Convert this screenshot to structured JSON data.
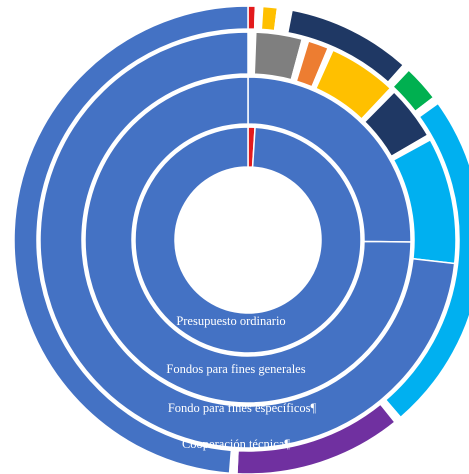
{
  "chart_data": {
    "type": "pie",
    "subtype": "multi-level doughnut",
    "title": "",
    "legend": "none",
    "rings": [
      {
        "name": "Presupuesto ordinario",
        "label": "Presupuesto ordinario",
        "slices": [
          {
            "value": 1,
            "color": "#e31a1c"
          },
          {
            "value": 99,
            "color": "#4472c4"
          }
        ]
      },
      {
        "name": "Fondos para fines generales",
        "label": "Fondos para fines generales",
        "slices": [
          {
            "value": 25.2,
            "color": "#4472c4"
          },
          {
            "value": 74.8,
            "color": "#4472c4"
          }
        ]
      },
      {
        "name": "Fondo para fines específicos",
        "label": "Fondo para fines específicos¶",
        "slices": [
          {
            "value": 0.6,
            "color": "#ffffff"
          },
          {
            "value": 3.6,
            "color": "#7f7f7f"
          },
          {
            "value": 0.5,
            "color": "#ffffff"
          },
          {
            "value": 1.6,
            "color": "#ed7d31"
          },
          {
            "value": 0.4,
            "color": "#ffffff"
          },
          {
            "value": 5.3,
            "color": "#ffc000"
          },
          {
            "value": 0.4,
            "color": "#ffffff"
          },
          {
            "value": 4.2,
            "color": "#1f3864"
          },
          {
            "value": 0.4,
            "color": "#ffffff"
          },
          {
            "value": 9.8,
            "color": "#00b0f0"
          },
          {
            "value": 73.2,
            "color": "#4472c4"
          }
        ]
      },
      {
        "name": "Cooperación técnica",
        "label": "Cooperación técnica¶",
        "slices": [
          {
            "value": 0.5,
            "color": "#e31a1c"
          },
          {
            "value": 0.5,
            "color": "#ffffff"
          },
          {
            "value": 1.0,
            "color": "#ffc000"
          },
          {
            "value": 1.0,
            "color": "#ffffff"
          },
          {
            "value": 8.5,
            "color": "#1f3864"
          },
          {
            "value": 0.5,
            "color": "#ffffff"
          },
          {
            "value": 2.5,
            "color": "#00b050"
          },
          {
            "value": 0.5,
            "color": "#ffffff"
          },
          {
            "value": 23.5,
            "color": "#00b0f0"
          },
          {
            "value": 0.5,
            "color": "#ffffff"
          },
          {
            "value": 11.5,
            "color": "#7030a0"
          },
          {
            "value": 0.5,
            "color": "#ffffff"
          },
          {
            "value": 48.5,
            "color": "#4472c4"
          }
        ]
      }
    ]
  }
}
